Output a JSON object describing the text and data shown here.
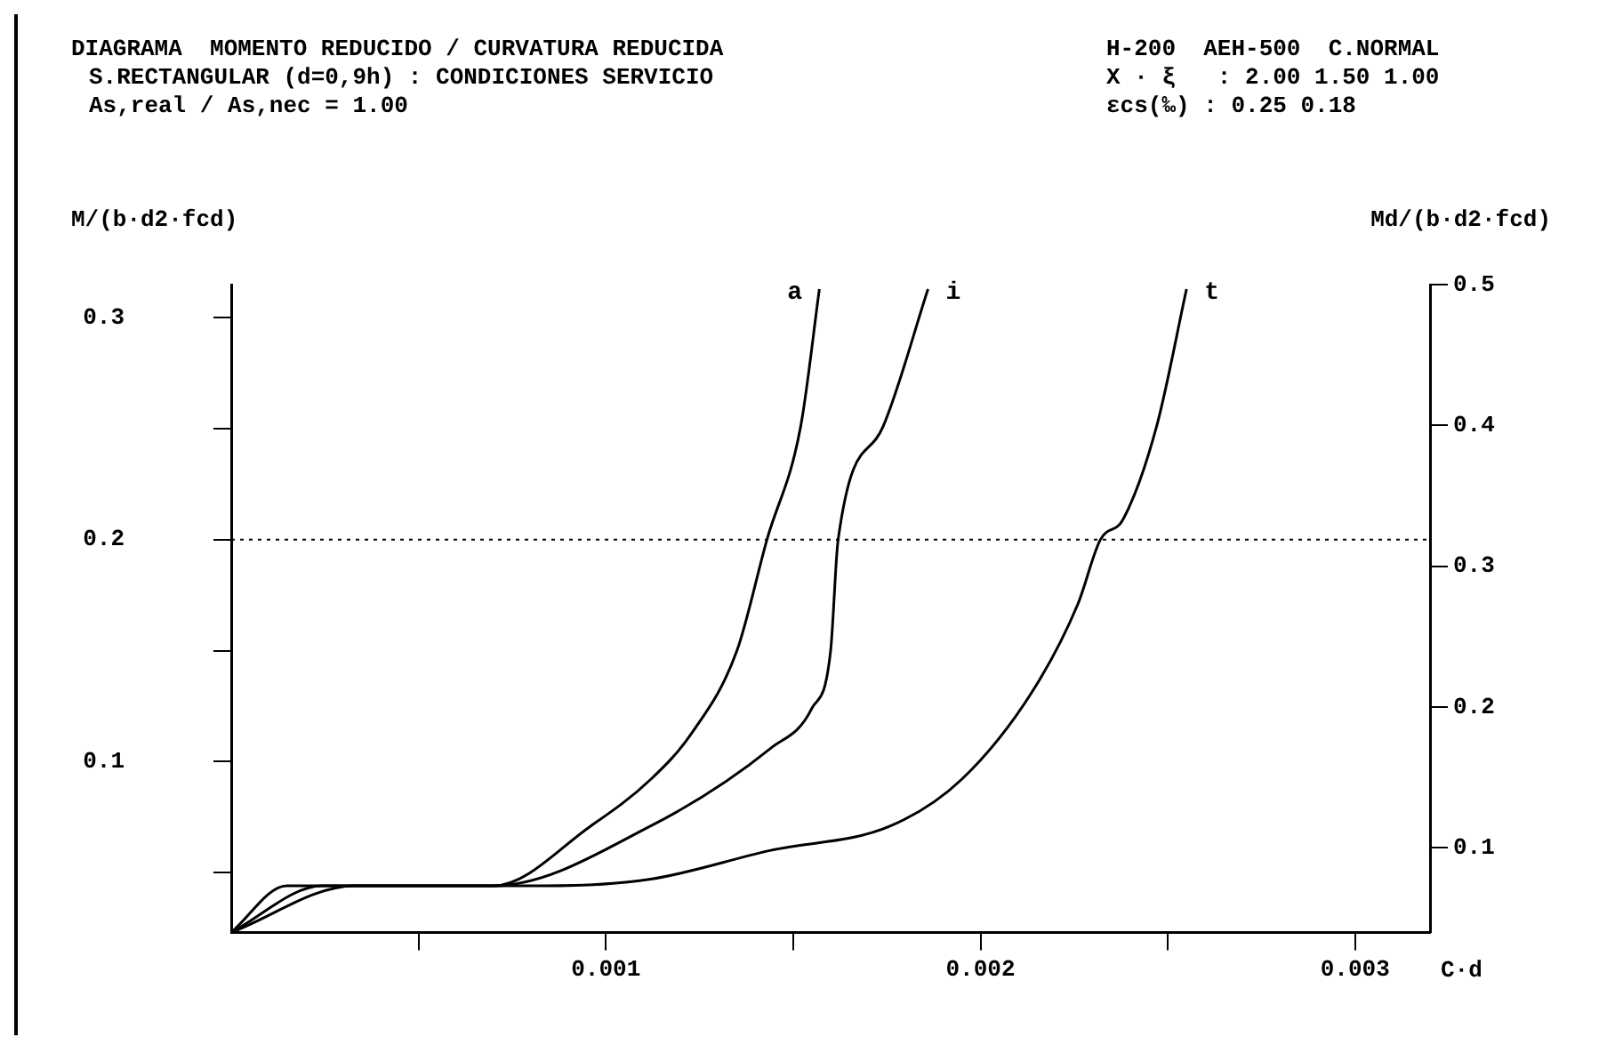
{
  "chart_data": {
    "type": "line",
    "title": "DIAGRAMA  MOMENTO REDUCIDO / CURVATURA REDUCIDA",
    "subtitle": "S.RECTANGULAR (d=0,9h) : CONDICIONES SERVICIO",
    "annotations": [
      "As,real / As,nec = 1.00",
      "H-200  AEH-500  C.NORMAL",
      "X · ξ   : 2.00 1.50 1.00",
      "εcs(‰) : 0.25 0.18"
    ],
    "xlabel": "C·d",
    "ylabel": "M/(b·d2·fcd)",
    "y2label": "Md/(b·d2·fcd)",
    "series": [
      {
        "name": "a",
        "color": "#000000",
        "x": [
          0,
          0.000148,
          0.0007,
          0.00096,
          0.00112,
          0.00123,
          0.00135,
          0.00143,
          0.00152,
          0.00157
        ],
        "values": [
          0.023,
          0.044,
          0.044,
          0.071,
          0.092,
          0.113,
          0.15,
          0.2,
          0.251,
          0.313
        ]
      },
      {
        "name": "i",
        "color": "#000000",
        "x": [
          0,
          0.000243,
          0.0007,
          0.00112,
          0.00144,
          0.00155,
          0.0016,
          0.00162,
          0.00174,
          0.00186
        ],
        "values": [
          0.023,
          0.044,
          0.044,
          0.071,
          0.106,
          0.124,
          0.15,
          0.2,
          0.251,
          0.313
        ]
      },
      {
        "name": "t",
        "color": "#000000",
        "x": [
          0,
          0.00033,
          0.00084,
          0.00112,
          0.00144,
          0.00176,
          0.00195,
          0.00214,
          0.00226,
          0.00232,
          0.00238,
          0.00247,
          0.00255
        ],
        "values": [
          0.023,
          0.044,
          0.044,
          0.047,
          0.06,
          0.071,
          0.092,
          0.132,
          0.171,
          0.2,
          0.209,
          0.251,
          0.313
        ]
      }
    ],
    "xlim": [
      0,
      0.0032
    ],
    "ylim": [
      0.023,
      0.315
    ],
    "y2lim": [
      0.04,
      0.5
    ],
    "xticks": [
      {
        "value": 0.0005,
        "label": null
      },
      {
        "value": 0.001,
        "label": "0.001"
      },
      {
        "value": 0.0015,
        "label": null
      },
      {
        "value": 0.002,
        "label": "0.002"
      },
      {
        "value": 0.0025,
        "label": null
      },
      {
        "value": 0.003,
        "label": "0.003"
      }
    ],
    "yticks": [
      {
        "value": 0.05,
        "label": null
      },
      {
        "value": 0.1,
        "label": "0.1"
      },
      {
        "value": 0.15,
        "label": null
      },
      {
        "value": 0.2,
        "label": "0.2"
      },
      {
        "value": 0.25,
        "label": null
      },
      {
        "value": 0.3,
        "label": "0.3"
      }
    ],
    "y2ticks": [
      0.1,
      0.2,
      0.3,
      0.4,
      0.5
    ],
    "ref_lines": [
      {
        "axis": "y",
        "value": 0.2,
        "color": "#000000",
        "line_style": "dotted"
      }
    ],
    "grid": false,
    "legend": false,
    "marker": "none",
    "line_style": "solid"
  }
}
